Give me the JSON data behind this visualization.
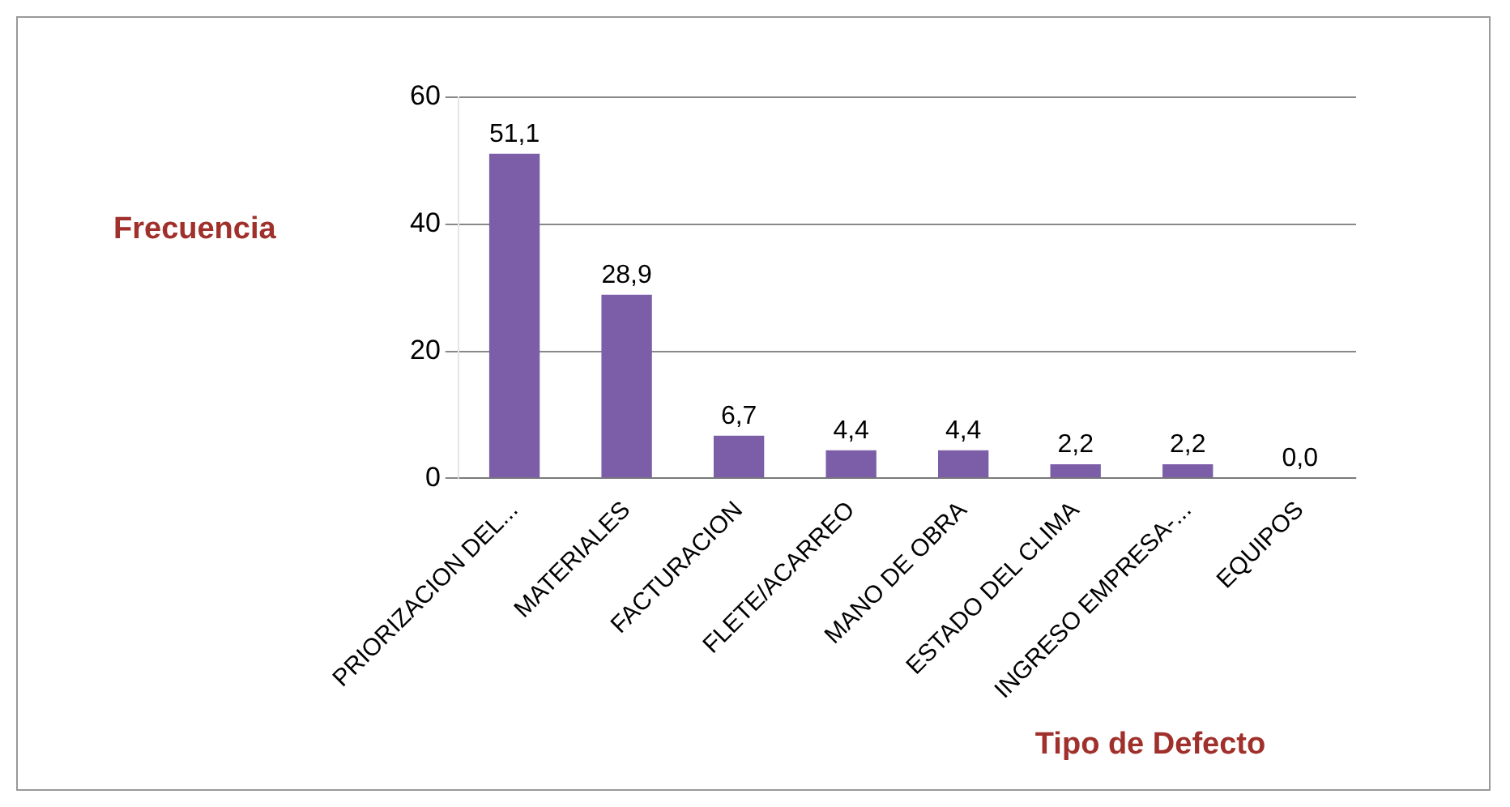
{
  "chart_data": {
    "type": "bar",
    "xlabel": "Tipo de Defecto",
    "ylabel": "Frecuencia",
    "categories": [
      "PRIORIZACION DEL...",
      "MATERIALES",
      "FACTURACION",
      "FLETE/ACARREO",
      "MANO DE OBRA",
      "ESTADO DEL CLIMA",
      "INGRESO EMPRESA-...",
      "EQUIPOS"
    ],
    "values": [
      51.1,
      28.9,
      6.7,
      4.4,
      4.4,
      2.2,
      2.2,
      0.0
    ],
    "value_labels": [
      "51,1",
      "28,9",
      "6,7",
      "4,4",
      "4,4",
      "2,2",
      "2,2",
      "0,0"
    ],
    "color": "#7b5ea7",
    "ylim": [
      0,
      60
    ],
    "yticks": [
      0,
      20,
      40,
      60
    ],
    "grid": "y",
    "legend": false
  }
}
